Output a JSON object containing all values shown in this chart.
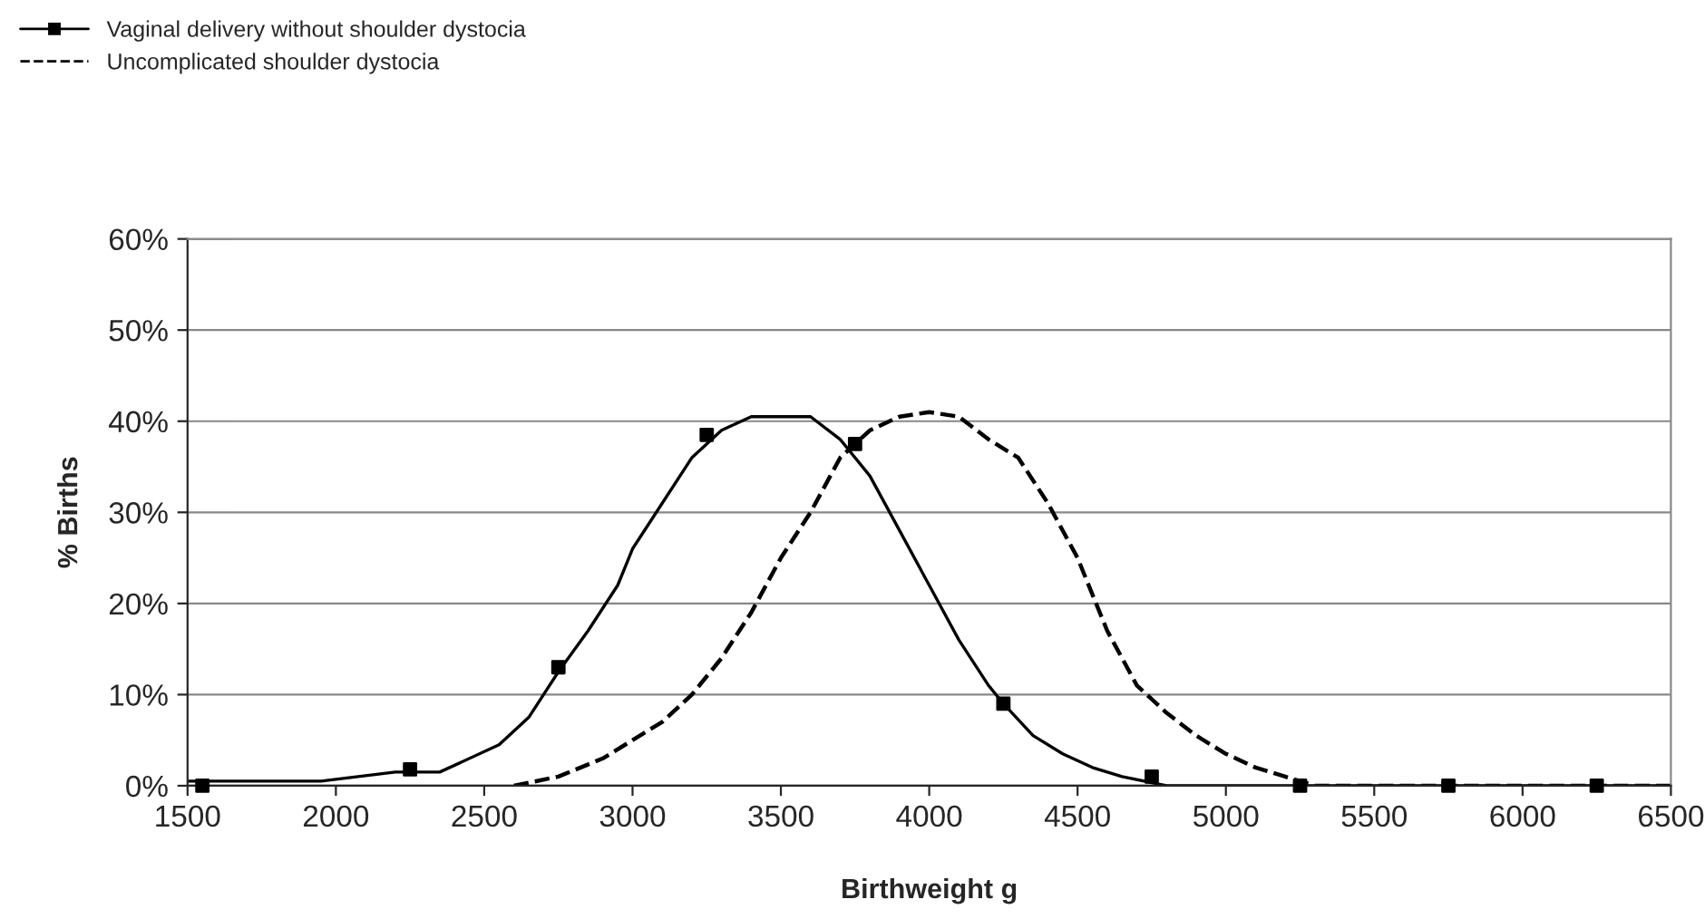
{
  "chart_data": {
    "type": "line",
    "xlabel": "Birthweight g",
    "ylabel": "% Births",
    "legend": "top left",
    "grid": "y",
    "xlim": [
      1500,
      6500
    ],
    "xticks": [
      1500,
      2000,
      2500,
      3000,
      3500,
      4000,
      4500,
      5000,
      5500,
      6000,
      6500
    ],
    "ylim": [
      0,
      60
    ],
    "yticks": [
      {
        "value": 0,
        "label": "0%"
      },
      {
        "value": 10,
        "label": "10%"
      },
      {
        "value": 20,
        "label": "20%"
      },
      {
        "value": 30,
        "label": "30%"
      },
      {
        "value": 40,
        "label": "40%"
      },
      {
        "value": 50,
        "label": "50%"
      },
      {
        "value": 60,
        "label": "60%"
      }
    ],
    "series": [
      {
        "name": "Vaginal delivery without shoulder dystocia",
        "color": "#000000",
        "line_style": "solid",
        "x": [
          1500,
          1950,
          2200,
          2350,
          2550,
          2650,
          2750,
          2850,
          2950,
          3000,
          3100,
          3200,
          3300,
          3400,
          3600,
          3700,
          3800,
          3900,
          4000,
          4100,
          4200,
          4250,
          4350,
          4450,
          4550,
          4650,
          4800,
          5000,
          5500,
          6500
        ],
        "values": [
          0.5,
          0.5,
          1.5,
          1.5,
          4.5,
          7.5,
          12.5,
          17,
          22,
          26,
          31,
          36,
          39,
          40.5,
          40.5,
          38,
          34,
          28,
          22,
          16,
          11,
          9,
          5.5,
          3.5,
          2,
          1,
          0,
          0,
          0,
          0
        ]
      },
      {
        "type": "scatter",
        "color": "#000000",
        "marker": "square",
        "x": [
          1550,
          2250,
          2750,
          3250,
          3750,
          4250,
          4750,
          5250,
          5750,
          6250
        ],
        "values": [
          0,
          1.8,
          13,
          38.5,
          37.5,
          9,
          1,
          0,
          0,
          0
        ]
      },
      {
        "name": "Uncomplicated shoulder dystocia",
        "color": "#000000",
        "line_style": "dashed",
        "x": [
          2600,
          2750,
          2900,
          3000,
          3100,
          3200,
          3300,
          3400,
          3500,
          3600,
          3700,
          3800,
          3900,
          4000,
          4100,
          4200,
          4300,
          4400,
          4500,
          4600,
          4700,
          4800,
          4900,
          5000,
          5100,
          5200,
          5300,
          5500,
          6500
        ],
        "values": [
          0,
          1,
          3,
          5,
          7,
          10,
          14,
          19,
          25,
          30,
          36,
          39,
          40.5,
          41,
          40.5,
          38,
          36,
          31,
          25,
          17,
          11,
          8,
          5.5,
          3.5,
          2,
          1,
          0,
          0,
          0
        ]
      }
    ]
  }
}
